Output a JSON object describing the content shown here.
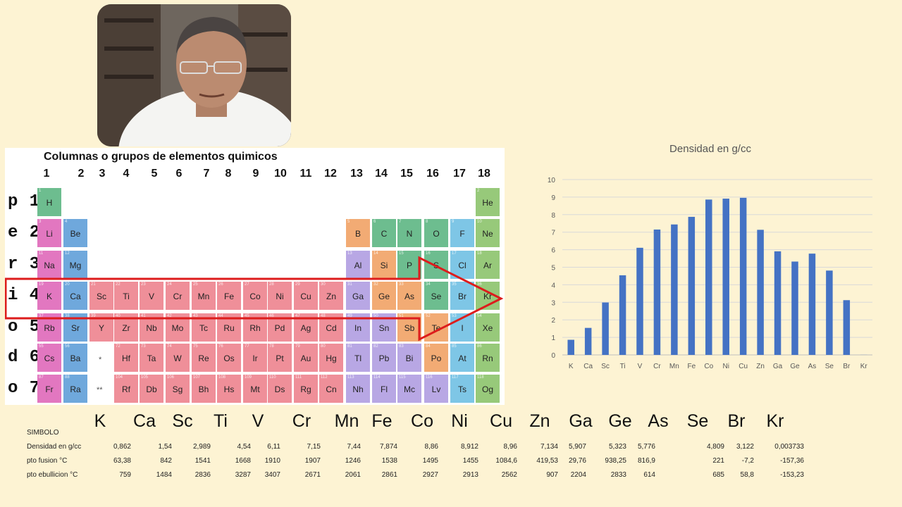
{
  "periodic_table": {
    "title": "Columnas  o  grupos de elementos quimicos",
    "groups": [
      "1",
      "2",
      "3",
      "4",
      "5",
      "6",
      "7",
      "8",
      "9",
      "10",
      "11",
      "12",
      "13",
      "14",
      "15",
      "16",
      "17",
      "18"
    ],
    "row_labels": [
      "p 1",
      "e 2",
      "r 3",
      "i 4",
      "o 5",
      "d 6",
      "o 7"
    ],
    "placeholders": [
      "*",
      "**"
    ],
    "colors": {
      "alkali": "#e277c0",
      "alkaline": "#6fa8dc",
      "transition": "#ef8f99",
      "post": "#b8a7e4",
      "metalloid": "#f2ab74",
      "nonmetal": "#6dbd8f",
      "halogen": "#7ec6e6",
      "noble": "#97c97a",
      "hydrogen": "#6dbd8f",
      "arrow": "#dd1c1c"
    },
    "elements": [
      {
        "n": "1",
        "s": "H",
        "c": "hydrogen"
      },
      {
        "n": "2",
        "s": "He",
        "c": "noble"
      },
      {
        "n": "3",
        "s": "Li",
        "c": "alkali"
      },
      {
        "n": "4",
        "s": "Be",
        "c": "alkaline"
      },
      {
        "n": "5",
        "s": "B",
        "c": "metalloid"
      },
      {
        "n": "6",
        "s": "C",
        "c": "nonmetal"
      },
      {
        "n": "7",
        "s": "N",
        "c": "nonmetal"
      },
      {
        "n": "8",
        "s": "O",
        "c": "nonmetal"
      },
      {
        "n": "9",
        "s": "F",
        "c": "halogen"
      },
      {
        "n": "10",
        "s": "Ne",
        "c": "noble"
      },
      {
        "n": "11",
        "s": "Na",
        "c": "alkali"
      },
      {
        "n": "12",
        "s": "Mg",
        "c": "alkaline"
      },
      {
        "n": "13",
        "s": "Al",
        "c": "post"
      },
      {
        "n": "14",
        "s": "Si",
        "c": "metalloid"
      },
      {
        "n": "15",
        "s": "P",
        "c": "nonmetal"
      },
      {
        "n": "16",
        "s": "S",
        "c": "nonmetal"
      },
      {
        "n": "17",
        "s": "Cl",
        "c": "halogen"
      },
      {
        "n": "18",
        "s": "Ar",
        "c": "noble"
      },
      {
        "n": "19",
        "s": "K",
        "c": "alkali"
      },
      {
        "n": "20",
        "s": "Ca",
        "c": "alkaline"
      },
      {
        "n": "21",
        "s": "Sc",
        "c": "transition"
      },
      {
        "n": "22",
        "s": "Ti",
        "c": "transition"
      },
      {
        "n": "23",
        "s": "V",
        "c": "transition"
      },
      {
        "n": "24",
        "s": "Cr",
        "c": "transition"
      },
      {
        "n": "25",
        "s": "Mn",
        "c": "transition"
      },
      {
        "n": "26",
        "s": "Fe",
        "c": "transition"
      },
      {
        "n": "27",
        "s": "Co",
        "c": "transition"
      },
      {
        "n": "28",
        "s": "Ni",
        "c": "transition"
      },
      {
        "n": "29",
        "s": "Cu",
        "c": "transition"
      },
      {
        "n": "30",
        "s": "Zn",
        "c": "transition"
      },
      {
        "n": "31",
        "s": "Ga",
        "c": "post"
      },
      {
        "n": "32",
        "s": "Ge",
        "c": "metalloid"
      },
      {
        "n": "33",
        "s": "As",
        "c": "metalloid"
      },
      {
        "n": "34",
        "s": "Se",
        "c": "nonmetal"
      },
      {
        "n": "35",
        "s": "Br",
        "c": "halogen"
      },
      {
        "n": "36",
        "s": "Kr",
        "c": "noble"
      },
      {
        "n": "37",
        "s": "Rb",
        "c": "alkali"
      },
      {
        "n": "38",
        "s": "Sr",
        "c": "alkaline"
      },
      {
        "n": "39",
        "s": "Y",
        "c": "transition"
      },
      {
        "n": "40",
        "s": "Zr",
        "c": "transition"
      },
      {
        "n": "41",
        "s": "Nb",
        "c": "transition"
      },
      {
        "n": "42",
        "s": "Mo",
        "c": "transition"
      },
      {
        "n": "43",
        "s": "Tc",
        "c": "transition"
      },
      {
        "n": "44",
        "s": "Ru",
        "c": "transition"
      },
      {
        "n": "45",
        "s": "Rh",
        "c": "transition"
      },
      {
        "n": "46",
        "s": "Pd",
        "c": "transition"
      },
      {
        "n": "47",
        "s": "Ag",
        "c": "transition"
      },
      {
        "n": "48",
        "s": "Cd",
        "c": "transition"
      },
      {
        "n": "49",
        "s": "In",
        "c": "post"
      },
      {
        "n": "50",
        "s": "Sn",
        "c": "post"
      },
      {
        "n": "51",
        "s": "Sb",
        "c": "metalloid"
      },
      {
        "n": "52",
        "s": "Te",
        "c": "metalloid"
      },
      {
        "n": "53",
        "s": "I",
        "c": "halogen"
      },
      {
        "n": "54",
        "s": "Xe",
        "c": "noble"
      },
      {
        "n": "55",
        "s": "Cs",
        "c": "alkali"
      },
      {
        "n": "56",
        "s": "Ba",
        "c": "alkaline"
      },
      {
        "n": "72",
        "s": "Hf",
        "c": "transition"
      },
      {
        "n": "73",
        "s": "Ta",
        "c": "transition"
      },
      {
        "n": "74",
        "s": "W",
        "c": "transition"
      },
      {
        "n": "75",
        "s": "Re",
        "c": "transition"
      },
      {
        "n": "76",
        "s": "Os",
        "c": "transition"
      },
      {
        "n": "77",
        "s": "Ir",
        "c": "transition"
      },
      {
        "n": "78",
        "s": "Pt",
        "c": "transition"
      },
      {
        "n": "79",
        "s": "Au",
        "c": "transition"
      },
      {
        "n": "80",
        "s": "Hg",
        "c": "transition"
      },
      {
        "n": "81",
        "s": "Tl",
        "c": "post"
      },
      {
        "n": "82",
        "s": "Pb",
        "c": "post"
      },
      {
        "n": "83",
        "s": "Bi",
        "c": "post"
      },
      {
        "n": "84",
        "s": "Po",
        "c": "metalloid"
      },
      {
        "n": "85",
        "s": "At",
        "c": "halogen"
      },
      {
        "n": "86",
        "s": "Rn",
        "c": "noble"
      },
      {
        "n": "87",
        "s": "Fr",
        "c": "alkali"
      },
      {
        "n": "88",
        "s": "Ra",
        "c": "alkaline"
      },
      {
        "n": "104",
        "s": "Rf",
        "c": "transition"
      },
      {
        "n": "105",
        "s": "Db",
        "c": "transition"
      },
      {
        "n": "106",
        "s": "Sg",
        "c": "transition"
      },
      {
        "n": "107",
        "s": "Bh",
        "c": "transition"
      },
      {
        "n": "108",
        "s": "Hs",
        "c": "transition"
      },
      {
        "n": "109",
        "s": "Mt",
        "c": "transition"
      },
      {
        "n": "110",
        "s": "Ds",
        "c": "transition"
      },
      {
        "n": "111",
        "s": "Rg",
        "c": "transition"
      },
      {
        "n": "112",
        "s": "Cn",
        "c": "transition"
      },
      {
        "n": "113",
        "s": "Nh",
        "c": "post"
      },
      {
        "n": "114",
        "s": "Fl",
        "c": "post"
      },
      {
        "n": "115",
        "s": "Mc",
        "c": "post"
      },
      {
        "n": "116",
        "s": "Lv",
        "c": "post"
      },
      {
        "n": "117",
        "s": "Ts",
        "c": "halogen"
      },
      {
        "n": "118",
        "s": "Og",
        "c": "noble"
      }
    ]
  },
  "chart_data": {
    "type": "bar",
    "title": "Densidad en g/cc",
    "categories": [
      "K",
      "Ca",
      "Sc",
      "Ti",
      "V",
      "Cr",
      "Mn",
      "Fe",
      "Co",
      "Ni",
      "Cu",
      "Zn",
      "Ga",
      "Ge",
      "As",
      "Se",
      "Br",
      "Kr"
    ],
    "values": [
      0.862,
      1.54,
      2.989,
      4.54,
      6.11,
      7.15,
      7.44,
      7.874,
      8.86,
      8.912,
      8.96,
      7.134,
      5.907,
      5.323,
      5.776,
      4.809,
      3.122,
      0.003733
    ],
    "ylim": [
      0,
      10
    ],
    "yticks": [
      "0",
      "1",
      "2",
      "3",
      "4",
      "5",
      "6",
      "7",
      "8",
      "9",
      "10"
    ],
    "grid": true,
    "bar_color": "#4472c4"
  },
  "data_table": {
    "header_label": "SIMBOLO",
    "symbols": [
      "K",
      "Ca",
      "Sc",
      "Ti",
      "V",
      "Cr",
      "Mn",
      "Fe",
      "Co",
      "Ni",
      "Cu",
      "Zn",
      "Ga",
      "Ge",
      "As",
      "Se",
      "Br",
      "Kr"
    ],
    "rows": [
      {
        "label": "Densidad en g/cc",
        "values": [
          "0,862",
          "1,54",
          "2,989",
          "4,54",
          "6,11",
          "7,15",
          "7,44",
          "7,874",
          "8,86",
          "8,912",
          "8,96",
          "7,134",
          "5,907",
          "5,323",
          "5,776",
          "4,809",
          "3,122",
          "0,003733"
        ]
      },
      {
        "label": "pto fusion  °C",
        "values": [
          "63,38",
          "842",
          "1541",
          "1668",
          "1910",
          "1907",
          "1246",
          "1538",
          "1495",
          "1455",
          "1084,6",
          "419,53",
          "29,76",
          "938,25",
          "816,9",
          "221",
          "-7,2",
          "-157,36"
        ]
      },
      {
        "label": "pto ebullicion   °C",
        "values": [
          "759",
          "1484",
          "2836",
          "3287",
          "3407",
          "2671",
          "2061",
          "2861",
          "2927",
          "2913",
          "2562",
          "907",
          "2204",
          "2833",
          "614",
          "685",
          "58,8",
          "-153,23"
        ]
      }
    ]
  }
}
